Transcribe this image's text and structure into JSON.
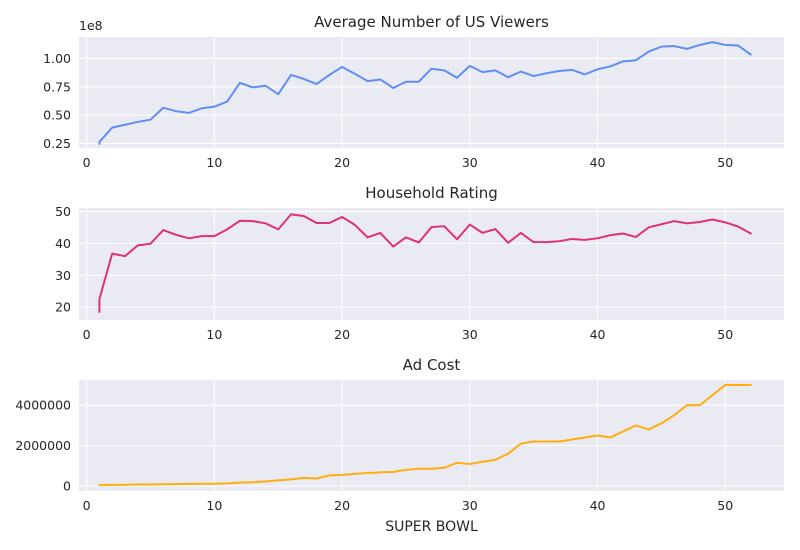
{
  "figure": {
    "background": "#ffffff",
    "axes_facecolor": "#EAEAF2",
    "grid_color": "#ffffff"
  },
  "chart_data": [
    {
      "type": "line",
      "title": "Average Number of US Viewers",
      "xlabel": "",
      "ylabel": "",
      "offset_label": "1e8",
      "color": "#5f8ff5",
      "xlim": [
        -0.6,
        54.6
      ],
      "ylim": [
        0.21,
        1.19
      ],
      "xticks": [
        0,
        10,
        20,
        30,
        40,
        50
      ],
      "yticks": [
        0.25,
        0.5,
        0.75,
        1.0
      ],
      "ytick_labels": [
        "0.25",
        "0.50",
        "0.75",
        "1.00"
      ],
      "grid": true,
      "x": [
        1,
        1,
        2,
        3,
        4,
        5,
        6,
        7,
        8,
        9,
        10,
        11,
        12,
        13,
        14,
        15,
        16,
        17,
        18,
        19,
        20,
        21,
        22,
        23,
        24,
        25,
        26,
        27,
        28,
        29,
        30,
        31,
        32,
        33,
        34,
        35,
        36,
        37,
        38,
        39,
        40,
        41,
        42,
        43,
        44,
        45,
        46,
        47,
        48,
        49,
        50,
        51,
        52
      ],
      "values": [
        0.245,
        0.265,
        0.39,
        0.415,
        0.44,
        0.46,
        0.565,
        0.535,
        0.52,
        0.56,
        0.575,
        0.62,
        0.785,
        0.745,
        0.76,
        0.685,
        0.855,
        0.82,
        0.775,
        0.855,
        0.925,
        0.865,
        0.8,
        0.815,
        0.74,
        0.795,
        0.795,
        0.91,
        0.895,
        0.83,
        0.935,
        0.88,
        0.895,
        0.835,
        0.885,
        0.845,
        0.87,
        0.89,
        0.9,
        0.86,
        0.905,
        0.93,
        0.975,
        0.985,
        1.06,
        1.105,
        1.11,
        1.085,
        1.12,
        1.145,
        1.12,
        1.115,
        1.035
      ]
    },
    {
      "type": "line",
      "title": "Household Rating",
      "xlabel": "",
      "ylabel": "",
      "color": "#dd3278",
      "xlim": [
        -0.6,
        54.6
      ],
      "ylim": [
        16.0,
        51.1
      ],
      "xticks": [
        0,
        10,
        20,
        30,
        40,
        50
      ],
      "yticks": [
        20,
        30,
        40,
        50
      ],
      "ytick_labels": [
        "20",
        "30",
        "40",
        "50"
      ],
      "grid": true,
      "x": [
        1,
        1,
        2,
        3,
        4,
        5,
        6,
        7,
        8,
        9,
        10,
        11,
        12,
        13,
        14,
        15,
        16,
        17,
        18,
        19,
        20,
        21,
        22,
        23,
        24,
        25,
        26,
        27,
        28,
        29,
        30,
        31,
        32,
        33,
        34,
        35,
        36,
        37,
        38,
        39,
        40,
        41,
        42,
        43,
        44,
        45,
        46,
        47,
        48,
        49,
        50,
        51,
        52
      ],
      "values": [
        18.5,
        22.6,
        36.8,
        36.0,
        39.4,
        39.9,
        44.2,
        42.7,
        41.6,
        42.3,
        42.3,
        44.4,
        47.1,
        47.0,
        46.3,
        44.4,
        49.1,
        48.6,
        46.4,
        46.4,
        48.3,
        45.8,
        41.9,
        43.3,
        39.0,
        41.9,
        40.3,
        45.1,
        45.4,
        41.3,
        45.9,
        43.3,
        44.5,
        40.2,
        43.3,
        40.4,
        40.4,
        40.7,
        41.4,
        41.1,
        41.6,
        42.6,
        43.1,
        42.0,
        45.0,
        46.0,
        47.0,
        46.3,
        46.7,
        47.5,
        46.6,
        45.3,
        43.1
      ]
    },
    {
      "type": "line",
      "title": "Ad Cost",
      "xlabel": "SUPER BOWL",
      "ylabel": "",
      "color": "#ffad0f",
      "xlim": [
        -0.6,
        54.6
      ],
      "ylim": [
        -250000,
        5250000
      ],
      "xticks": [
        0,
        10,
        20,
        30,
        40,
        50
      ],
      "yticks": [
        0,
        2000000,
        4000000
      ],
      "ytick_labels": [
        "0",
        "2000000",
        "4000000"
      ],
      "grid": true,
      "x": [
        1,
        2,
        3,
        4,
        5,
        6,
        7,
        8,
        9,
        10,
        11,
        12,
        13,
        14,
        15,
        16,
        17,
        18,
        19,
        20,
        21,
        22,
        23,
        24,
        25,
        26,
        27,
        28,
        29,
        30,
        31,
        32,
        33,
        34,
        35,
        36,
        37,
        38,
        39,
        40,
        41,
        42,
        43,
        44,
        45,
        46,
        47,
        48,
        49,
        50,
        51,
        52
      ],
      "values": [
        42500,
        54000,
        55000,
        78200,
        72000,
        86100,
        88100,
        103500,
        107000,
        110000,
        125000,
        162300,
        185000,
        222000,
        275000,
        324300,
        400000,
        368200,
        525000,
        550000,
        600000,
        645000,
        675000,
        700000,
        800000,
        850000,
        850000,
        900000,
        1150000,
        1085000,
        1200000,
        1300000,
        1600000,
        2100000,
        2200000,
        2200000,
        2200000,
        2300000,
        2400000,
        2500000,
        2400000,
        2700000,
        3000000,
        2800000,
        3100000,
        3500000,
        4000000,
        4000000,
        4500000,
        5000000,
        5000000,
        5000000
      ]
    }
  ]
}
